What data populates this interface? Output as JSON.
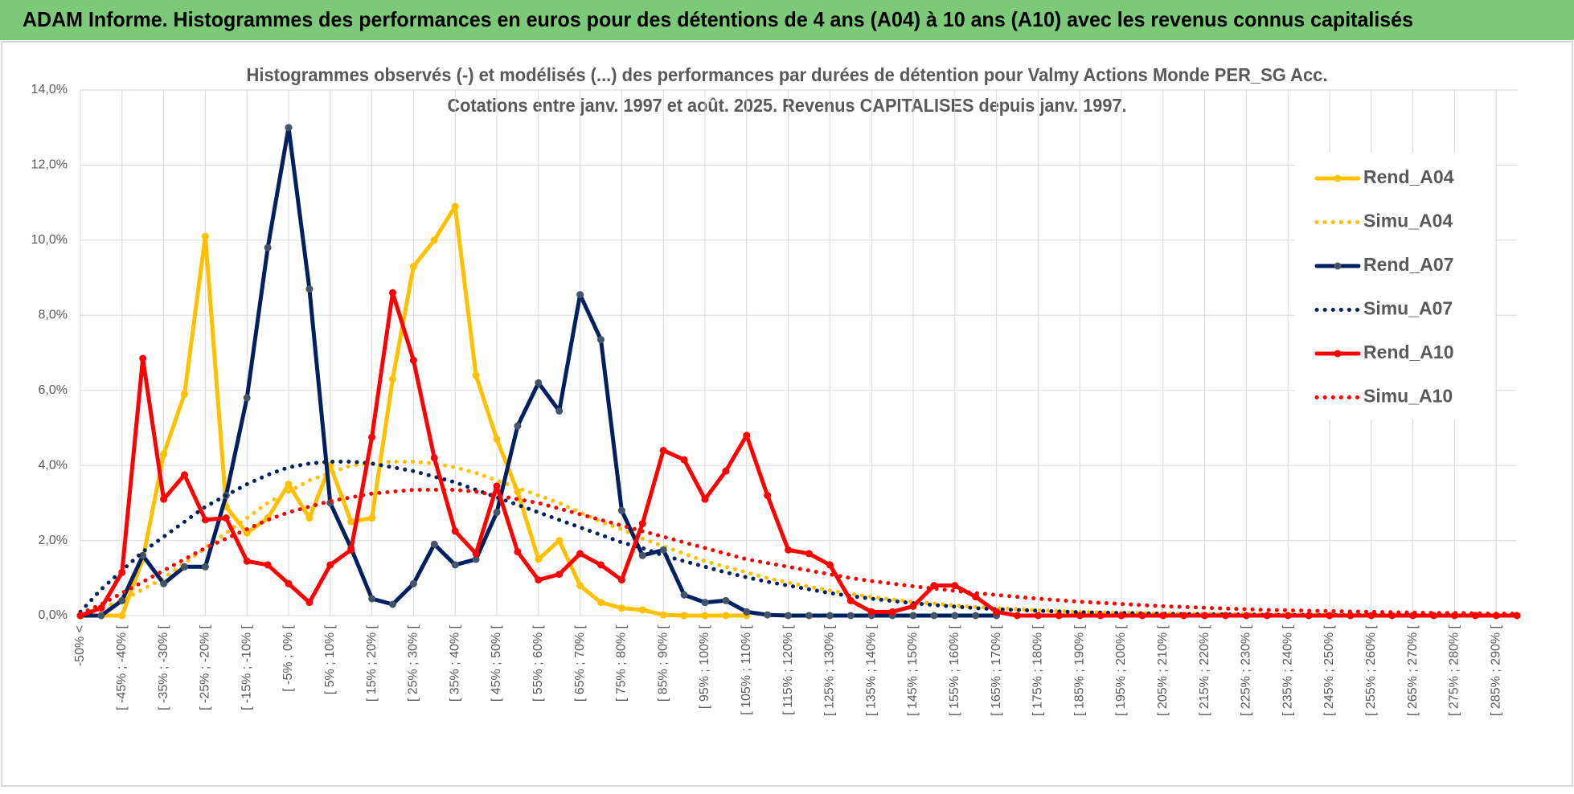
{
  "header": {
    "title": "ADAM Informe. Histogrammes des performances en euros pour des détentions de 4 ans (A04) à 10 ans (A10) avec les revenus connus capitalisés"
  },
  "chart_data": {
    "type": "line",
    "title": "Histogrammes observés (-) et modélisés (...) des performances par durées de détention pour Valmy Actions Monde PER_SG Acc.",
    "subtitle": "Cotations entre janv. 1997 et août. 2025. Revenus CAPITALISES depuis janv. 1997.",
    "categories": [
      "-50% <",
      null,
      "[ -45% ; -40% [",
      null,
      "[ -35% ; -30% [",
      null,
      "[ -25% ; -20% [",
      null,
      "[ -15% ; -10% [",
      null,
      "[ -5% ; 0% [",
      null,
      "[ 5% ; 10% [",
      null,
      "[ 15% ; 20% [",
      null,
      "[ 25% ; 30% [",
      null,
      "[ 35% ; 40% [",
      null,
      "[ 45% ; 50% [",
      null,
      "[ 55% ; 60% [",
      null,
      "[ 65% ; 70% [",
      null,
      "[ 75% ; 80% [",
      null,
      "[ 85% ; 90% [",
      null,
      "[ 95% ; 100% [",
      null,
      "[ 105% ; 110% [",
      null,
      "[ 115% ; 120% [",
      null,
      "[ 125% ; 130% [",
      null,
      "[ 135% ; 140% [",
      null,
      "[ 145% ; 150% [",
      null,
      "[ 155% ; 160% [",
      null,
      "[ 165% ; 170% [",
      null,
      "[ 175% ; 180% [",
      null,
      "[ 185% ; 190% [",
      null,
      "[ 195% ; 200% [",
      null,
      "[ 205% ; 210% [",
      null,
      "[ 215% ; 220% [",
      null,
      "[ 225% ; 230% [",
      null,
      "[ 235% ; 240% [",
      null,
      "[ 245% ; 250% [",
      null,
      "[ 255% ; 260% [",
      null,
      "[ 265% ; 270% [",
      null,
      "[ 275% ; 280% [",
      null,
      "[ 285% ; 290% [",
      null
    ],
    "ylim": [
      0,
      14
    ],
    "yticks": [
      {
        "value": 0,
        "label": "0,0%"
      },
      {
        "value": 2,
        "label": "2,0%"
      },
      {
        "value": 4,
        "label": "4,0%"
      },
      {
        "value": 6,
        "label": "6,0%"
      },
      {
        "value": 8,
        "label": "8,0%"
      },
      {
        "value": 10,
        "label": "10,0%"
      },
      {
        "value": 12,
        "label": "12,0%"
      },
      {
        "value": 14,
        "label": "14,0%"
      }
    ],
    "grid": true,
    "legend": "right",
    "series": [
      {
        "name": "Rend_A04",
        "color": "#FFC000",
        "style": "solid",
        "values": [
          0,
          0,
          0,
          1.5,
          4.3,
          5.9,
          10.1,
          2.9,
          2.2,
          2.6,
          3.5,
          2.6,
          4.0,
          2.5,
          2.6,
          6.3,
          9.3,
          10.0,
          10.9,
          6.4,
          4.7,
          3.3,
          1.5,
          2.0,
          0.8,
          0.35,
          0.2,
          0.15,
          0.02,
          0,
          0,
          0,
          0,
          null,
          null,
          null,
          null,
          null,
          null,
          null,
          null,
          null,
          null,
          null,
          null,
          null,
          null,
          null,
          null,
          null,
          null,
          null,
          null,
          null,
          null,
          null,
          null,
          null,
          null,
          null,
          null,
          null,
          null,
          null,
          null,
          null,
          null,
          null,
          null,
          null
        ]
      },
      {
        "name": "Simu_A04",
        "color": "#FFC000",
        "style": "dotted",
        "values": [
          0,
          0.2,
          0.4,
          0.7,
          1.0,
          1.4,
          1.8,
          2.2,
          2.6,
          3.0,
          3.3,
          3.6,
          3.8,
          4.0,
          4.05,
          4.1,
          4.1,
          4.05,
          3.95,
          3.8,
          3.6,
          3.4,
          3.2,
          3.0,
          2.75,
          2.5,
          2.3,
          2.05,
          1.85,
          1.65,
          1.45,
          1.3,
          1.15,
          1.0,
          0.88,
          0.77,
          0.67,
          0.58,
          0.5,
          0.43,
          0.37,
          0.32,
          0.27,
          0.23,
          0.2,
          0.17,
          0.14,
          0.12,
          0.1,
          0.09,
          0.08,
          0.07,
          0.06,
          0.05,
          0.05,
          0.04,
          0.04,
          0.03,
          0.03,
          0.03,
          0.02,
          0.02,
          0.02,
          0.02,
          0.01,
          0.01,
          0.01,
          0.01,
          0.01,
          0.01
        ]
      },
      {
        "name": "Rend_A07",
        "color": "#002060",
        "marker": "#44546A",
        "style": "solid",
        "values": [
          0,
          0,
          0.4,
          1.6,
          0.85,
          1.3,
          1.3,
          3.2,
          5.8,
          9.8,
          13.0,
          8.7,
          3.0,
          1.8,
          0.45,
          0.3,
          0.85,
          1.9,
          1.35,
          1.5,
          2.75,
          5.05,
          6.2,
          5.45,
          8.55,
          7.35,
          2.8,
          1.6,
          1.75,
          0.55,
          0.35,
          0.4,
          0.1,
          0.02,
          0,
          0,
          0,
          0,
          0,
          0,
          0,
          0,
          0,
          0,
          0,
          null,
          null,
          null,
          null,
          null,
          null,
          null,
          null,
          null,
          null,
          null,
          null,
          null,
          null,
          null,
          null,
          null,
          null,
          null,
          null,
          null,
          null,
          null,
          null,
          null
        ]
      },
      {
        "name": "Simu_A07",
        "color": "#002060",
        "style": "dotted",
        "values": [
          0.1,
          0.7,
          1.2,
          1.7,
          2.1,
          2.5,
          2.9,
          3.2,
          3.5,
          3.75,
          3.95,
          4.05,
          4.1,
          4.1,
          4.05,
          3.95,
          3.85,
          3.7,
          3.55,
          3.35,
          3.15,
          2.95,
          2.75,
          2.55,
          2.35,
          2.15,
          1.95,
          1.8,
          1.6,
          1.45,
          1.3,
          1.15,
          1.02,
          0.9,
          0.8,
          0.7,
          0.6,
          0.52,
          0.45,
          0.39,
          0.33,
          0.28,
          0.24,
          0.2,
          0.17,
          0.15,
          0.13,
          0.11,
          0.09,
          0.08,
          0.07,
          0.06,
          0.05,
          0.04,
          0.04,
          0.03,
          0.03,
          0.02,
          0.02,
          0.02,
          0.02,
          0.01,
          0.01,
          0.01,
          0.01,
          0.01,
          0.01,
          0.01,
          0.01,
          0.01
        ]
      },
      {
        "name": "Rend_A10",
        "color": "#FF0000",
        "style": "solid",
        "values": [
          0,
          0.2,
          1.15,
          6.85,
          3.1,
          3.75,
          2.55,
          2.6,
          1.45,
          1.35,
          0.85,
          0.35,
          1.35,
          1.75,
          4.75,
          8.6,
          6.8,
          4.2,
          2.25,
          1.65,
          3.45,
          1.7,
          0.95,
          1.1,
          1.65,
          1.35,
          0.95,
          2.45,
          4.4,
          4.15,
          3.1,
          3.85,
          4.8,
          3.2,
          1.75,
          1.65,
          1.35,
          0.4,
          0.1,
          0.1,
          0.25,
          0.8,
          0.8,
          0.5,
          0.1,
          0,
          0,
          0,
          0,
          0,
          0,
          0,
          0,
          0,
          0,
          0,
          0,
          0,
          0,
          0,
          0,
          0,
          0,
          0,
          0,
          0,
          0,
          0,
          0,
          0
        ]
      },
      {
        "name": "Simu_A10",
        "color": "#FF0000",
        "style": "dotted",
        "values": [
          0.05,
          0.3,
          0.6,
          0.9,
          1.2,
          1.5,
          1.8,
          2.05,
          2.3,
          2.55,
          2.75,
          2.9,
          3.05,
          3.15,
          3.25,
          3.3,
          3.35,
          3.35,
          3.35,
          3.3,
          3.2,
          3.1,
          3.0,
          2.85,
          2.7,
          2.55,
          2.4,
          2.25,
          2.1,
          1.95,
          1.8,
          1.65,
          1.5,
          1.4,
          1.3,
          1.2,
          1.1,
          1.0,
          0.92,
          0.85,
          0.78,
          0.72,
          0.66,
          0.6,
          0.55,
          0.5,
          0.45,
          0.41,
          0.37,
          0.34,
          0.31,
          0.28,
          0.25,
          0.23,
          0.21,
          0.19,
          0.17,
          0.15,
          0.14,
          0.13,
          0.12,
          0.11,
          0.1,
          0.09,
          0.08,
          0.07,
          0.07,
          0.06,
          0.05,
          0.05
        ]
      }
    ]
  }
}
